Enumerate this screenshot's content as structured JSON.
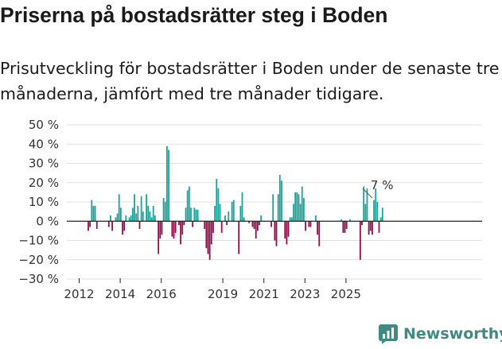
{
  "title": "Priserna på bostadsrätter steg i Boden",
  "subtitle": "Prisutveckling för bostadsrätter i Boden under de senaste tre månaderna, jämfört med tre månader tidigare.",
  "brand": {
    "name": "Newsworthy",
    "icon": "newsworthy-logo-icon",
    "color": "#3f8a83"
  },
  "colors": {
    "positive": "#1aa399",
    "negative": "#960d4a",
    "grid": "#e2e2e2",
    "zero_line": "#222222"
  },
  "chart_data": {
    "type": "bar",
    "title": "",
    "xlabel": "",
    "ylabel": "",
    "ylim": [
      -30,
      50
    ],
    "y_ticks": [
      50,
      40,
      30,
      20,
      10,
      0,
      -10,
      -20,
      -30
    ],
    "y_tick_labels": [
      "50 %",
      "40 %",
      "30 %",
      "20 %",
      "10 %",
      "0 %",
      "−10 %",
      "−20 %",
      "−30 %"
    ],
    "x_ticks": [
      {
        "label": "2012",
        "index": 0
      },
      {
        "label": "2014",
        "index": 24
      },
      {
        "label": "2016",
        "index": 48
      },
      {
        "label": "2019",
        "index": 84
      },
      {
        "label": "2021",
        "index": 108
      },
      {
        "label": "2023",
        "index": 132
      },
      {
        "label": "2025",
        "index": 156
      }
    ],
    "start": "2012-01",
    "frequency": "monthly",
    "values": [
      0,
      0,
      0,
      0,
      -5,
      -3,
      11,
      8,
      8,
      -4,
      0,
      0,
      0,
      0,
      0,
      0,
      -3,
      3,
      -5,
      0,
      2,
      4,
      14,
      7,
      -7,
      -5,
      3,
      0,
      2,
      3,
      7,
      14,
      4,
      8,
      -4,
      13,
      5,
      0,
      14,
      8,
      5,
      2,
      8,
      3,
      0,
      -17,
      -9,
      -7,
      12,
      10,
      39,
      37,
      0,
      -8,
      -9,
      -6,
      0,
      -2,
      -12,
      -7,
      -2,
      7,
      16,
      18,
      7,
      -3,
      7,
      6,
      6,
      0,
      0,
      0,
      -4,
      -14,
      -17,
      -20,
      -12,
      -6,
      8,
      22,
      17,
      9,
      -6,
      0,
      3,
      -2,
      5,
      0,
      10,
      11,
      0,
      0,
      -17,
      8,
      15,
      2,
      0,
      0,
      -1,
      0,
      -3,
      -4,
      -9,
      -5,
      -2,
      3,
      0,
      0,
      0,
      0,
      0,
      -3,
      14,
      -10,
      -13,
      14,
      24,
      21,
      0,
      -9,
      -12,
      -8,
      2,
      2,
      9,
      15,
      15,
      14,
      9,
      18,
      12,
      -5,
      0,
      -3,
      -3,
      0,
      0,
      3,
      -7,
      -13,
      0,
      0,
      0,
      0,
      0,
      0,
      0,
      0,
      0,
      0,
      0,
      0,
      1,
      -6,
      -6,
      -4,
      0,
      1,
      0,
      0,
      0,
      0,
      0,
      -20,
      -2,
      18,
      9,
      17,
      -7,
      -5,
      -7,
      11,
      17,
      10,
      -6,
      2,
      7
    ],
    "last_value": 7,
    "annotation": "7 %"
  }
}
